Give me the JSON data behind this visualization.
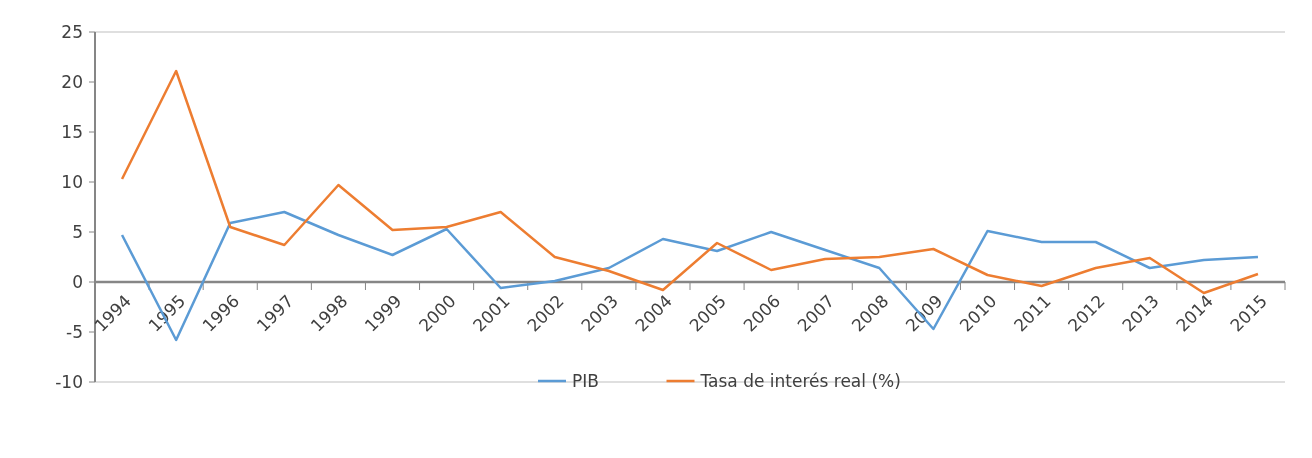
{
  "chart_data": {
    "type": "line",
    "categories": [
      "1994",
      "1995",
      "1996",
      "1997",
      "1998",
      "1999",
      "2000",
      "2001",
      "2002",
      "2003",
      "2004",
      "2005",
      "2006",
      "2007",
      "2008",
      "2009",
      "2010",
      "2011",
      "2012",
      "2013",
      "2014",
      "2015"
    ],
    "series": [
      {
        "name": "PIB",
        "color": "#5b9bd5",
        "values": [
          4.7,
          -5.8,
          5.9,
          7.0,
          4.7,
          2.7,
          5.3,
          -0.6,
          0.1,
          1.4,
          4.3,
          3.1,
          5.0,
          3.2,
          1.4,
          -4.7,
          5.1,
          4.0,
          4.0,
          1.4,
          2.2,
          2.5
        ]
      },
      {
        "name": "Tasa de interés real (%)",
        "color": "#ed7d31",
        "values": [
          10.3,
          21.1,
          5.5,
          3.7,
          9.7,
          5.2,
          5.5,
          7.0,
          2.5,
          1.1,
          -0.8,
          3.9,
          1.2,
          2.3,
          2.5,
          3.3,
          0.7,
          -0.4,
          1.4,
          2.4,
          -1.1,
          0.8
        ]
      }
    ],
    "ylim": [
      -10,
      25
    ],
    "yticks": [
      -10,
      -5,
      0,
      5,
      10,
      15,
      20,
      25
    ],
    "grid": false,
    "legend": "bottom",
    "marker": "none",
    "line_style": "solid"
  }
}
